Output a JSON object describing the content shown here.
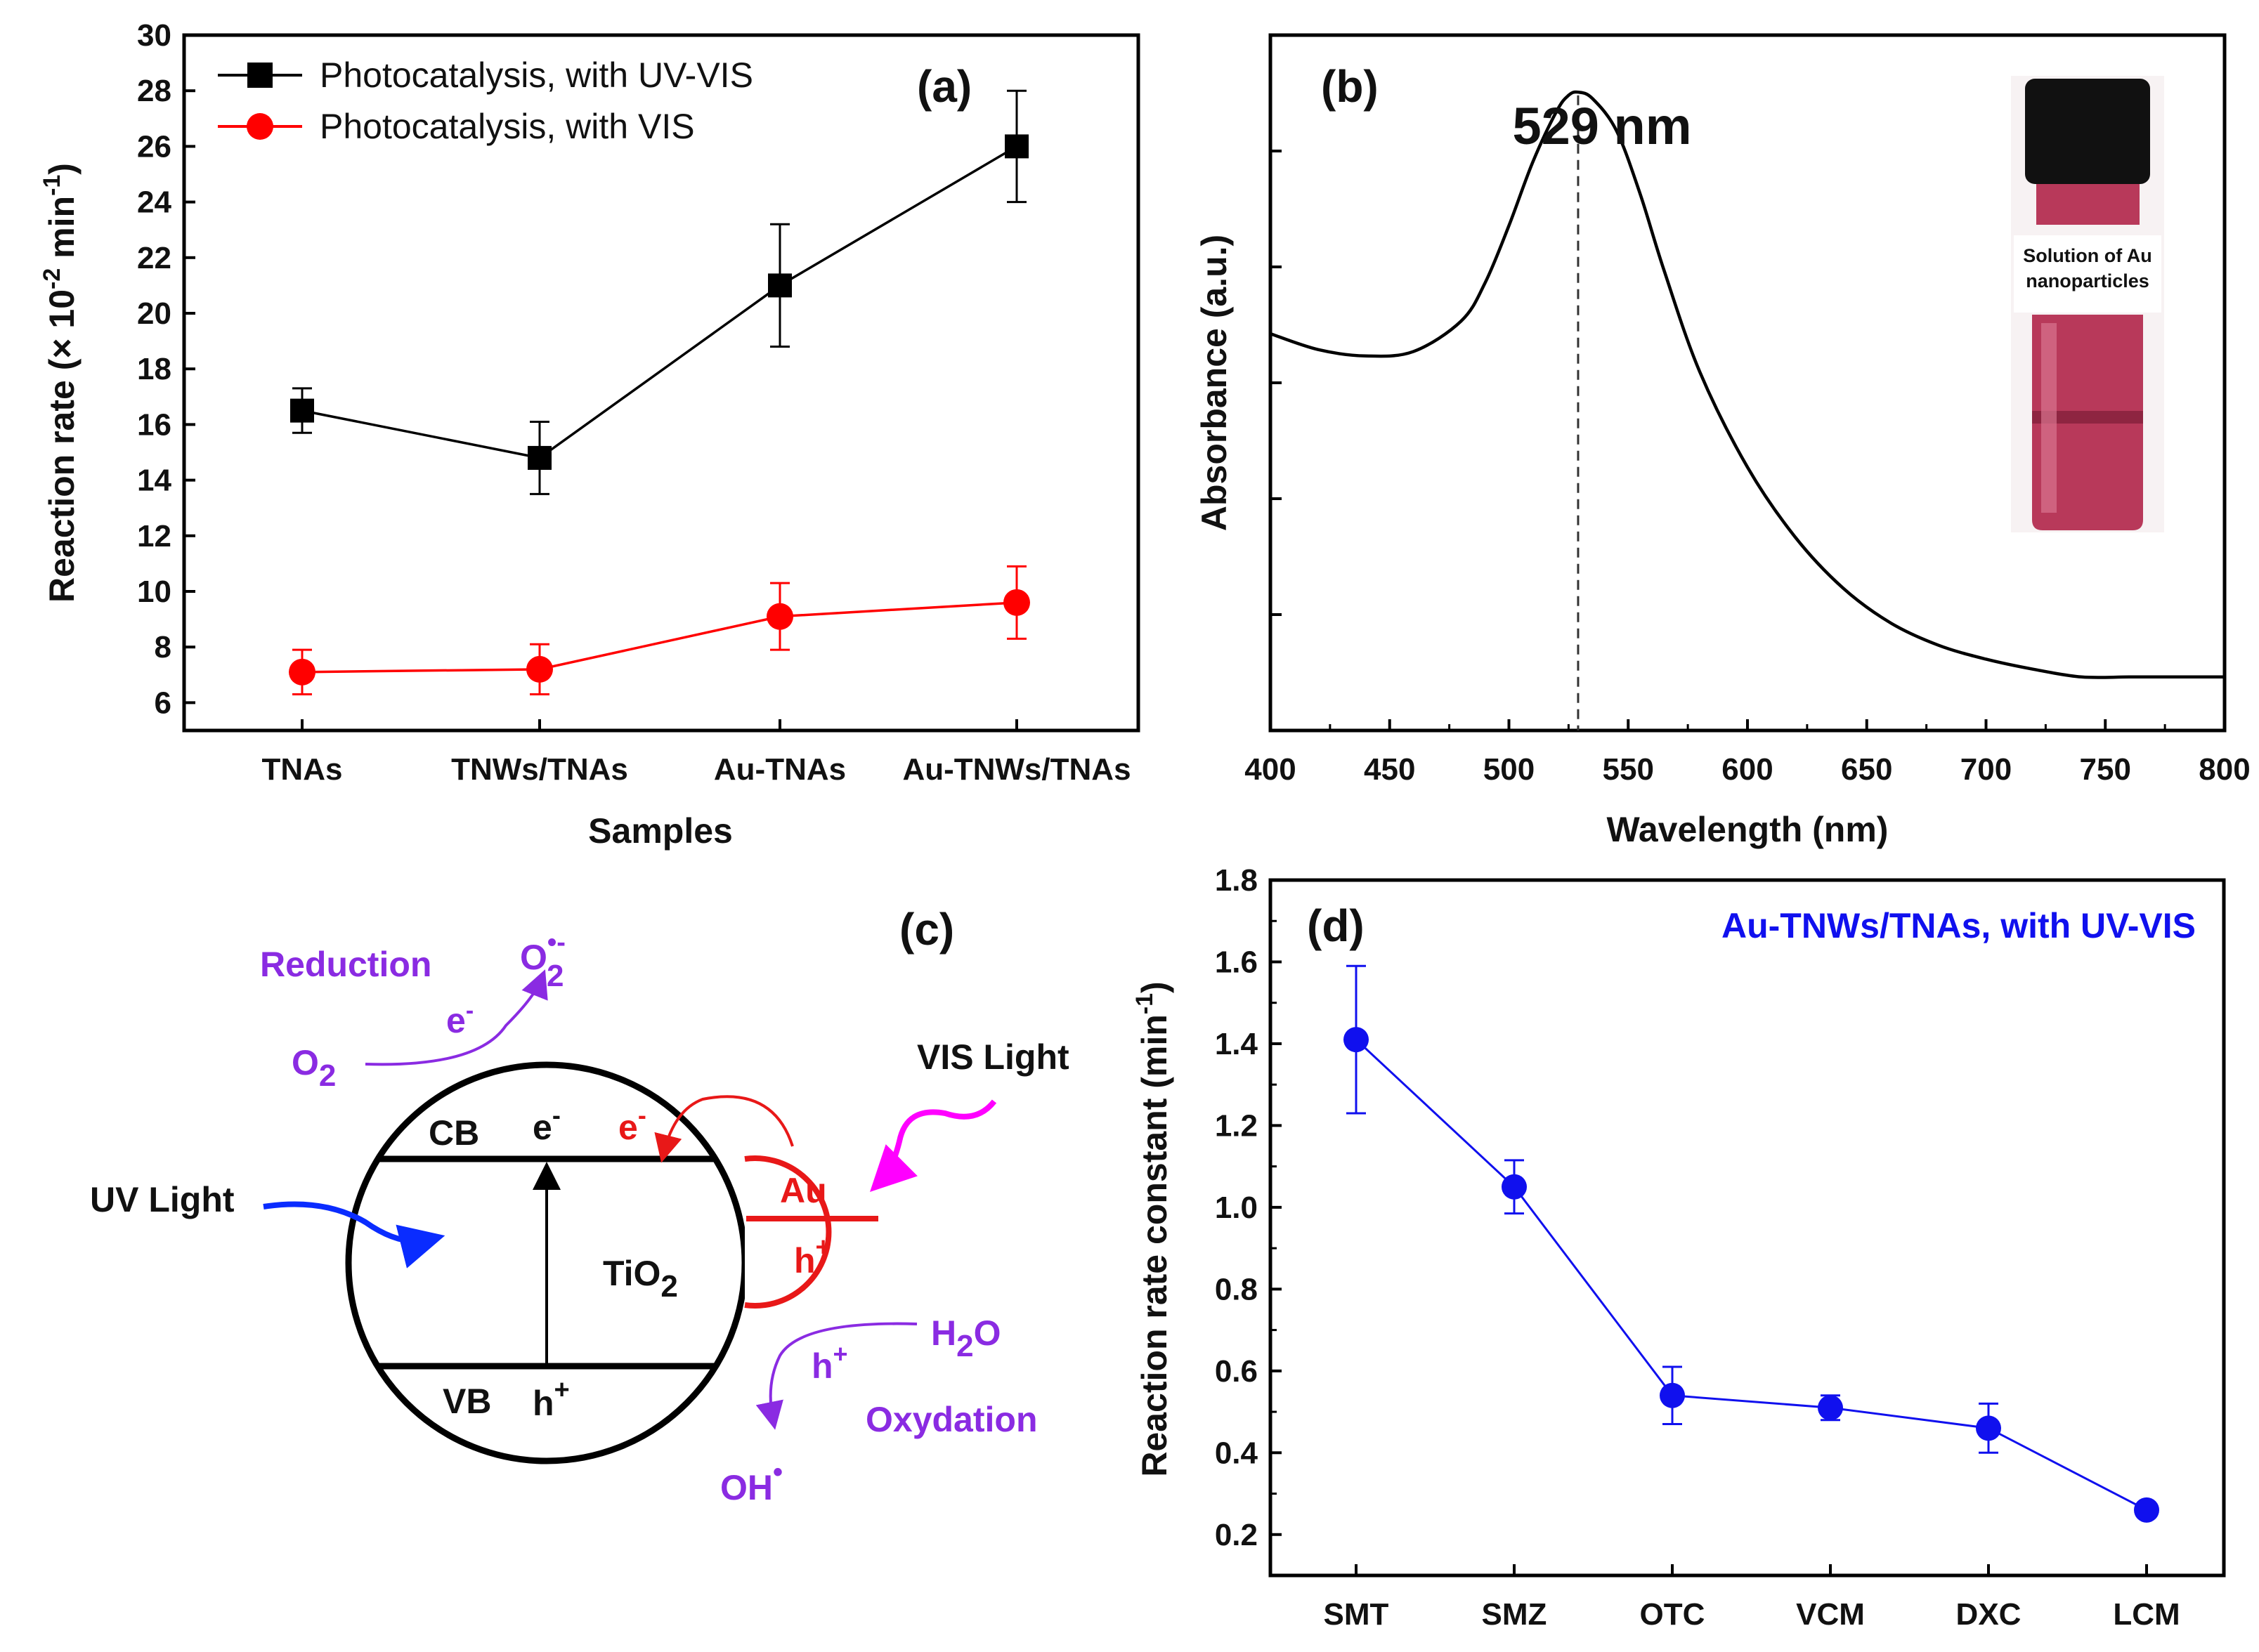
{
  "colors": {
    "black": "#000000",
    "red": "#ff0000",
    "blue": "#1010ee",
    "purple": "#8a2be2",
    "magenta": "#ff00ff",
    "uv_blue": "#0a2cff",
    "gold_red": "#e81818",
    "vial": "#b8395a"
  },
  "chart_data": [
    {
      "panel": "(a)",
      "type": "line",
      "title": "",
      "xlabel": "Samples",
      "ylabel": "Reaction rate (× 10-2 min-1)",
      "ylabel_parts": {
        "main": "Reaction rate (× 10",
        "sup1": "-2",
        "mid": " min",
        "sup2": "-1",
        "end": ")"
      },
      "categories": [
        "TNAs",
        "TNWs/TNAs",
        "Au-TNAs",
        "Au-TNWs/TNAs"
      ],
      "ylim": [
        5,
        30
      ],
      "yticks": [
        6,
        8,
        10,
        12,
        14,
        16,
        18,
        20,
        22,
        24,
        26,
        28,
        30
      ],
      "series": [
        {
          "name": "Photocatalysis, with UV-VIS",
          "color": "#000000",
          "marker": "square",
          "values": [
            16.5,
            14.8,
            21.0,
            26.0
          ],
          "errors": [
            0.8,
            1.3,
            2.2,
            2.0
          ]
        },
        {
          "name": "Photocatalysis, with VIS",
          "color": "#ff0000",
          "marker": "circle",
          "values": [
            7.1,
            7.2,
            9.1,
            9.6
          ],
          "errors": [
            0.8,
            0.9,
            1.2,
            1.3
          ]
        }
      ],
      "legend_position": "top-left"
    },
    {
      "panel": "(b)",
      "type": "line",
      "xlabel": "Wavelength (nm)",
      "ylabel": "Absorbance (a.u.)",
      "xlim": [
        400,
        800
      ],
      "xticks": [
        400,
        450,
        500,
        550,
        600,
        650,
        700,
        750,
        800
      ],
      "ylim": [
        0,
        1
      ],
      "peak_label": "529 nm",
      "peak_x": 529,
      "x": [
        400,
        420,
        440,
        460,
        480,
        490,
        500,
        510,
        520,
        525,
        529,
        535,
        545,
        555,
        565,
        580,
        600,
        620,
        640,
        660,
        680,
        700,
        720,
        740,
        760,
        780,
        800
      ],
      "values": [
        0.58,
        0.555,
        0.545,
        0.552,
        0.6,
        0.66,
        0.75,
        0.85,
        0.93,
        0.955,
        0.96,
        0.95,
        0.9,
        0.8,
        0.68,
        0.52,
        0.37,
        0.26,
        0.18,
        0.125,
        0.09,
        0.068,
        0.052,
        0.04,
        0.04,
        0.04,
        0.04
      ],
      "inset_caption": [
        "Solution of Au",
        "nanoparticles"
      ]
    },
    {
      "panel": "(d)",
      "type": "line",
      "title": "Au-TNWs/TNAs, with UV-VIS",
      "xlabel": "",
      "ylabel": "Reaction rate constant (min-1)",
      "ylabel_parts": {
        "main": "Reaction rate constant (min",
        "sup": "-1",
        "end": ")"
      },
      "categories": [
        "SMT",
        "SMZ",
        "OTC",
        "VCM",
        "DXC",
        "LCM"
      ],
      "ylim": [
        0.1,
        1.8
      ],
      "yticks": [
        0.2,
        0.4,
        0.6,
        0.8,
        1.0,
        1.2,
        1.4,
        1.6,
        1.8
      ],
      "ytick_labels": [
        "0.2",
        "0.4",
        "0.6",
        "0.8",
        "1.0",
        "1.2",
        "1.4",
        "1.6",
        "1.8"
      ],
      "series": [
        {
          "name": "Au-TNWs/TNAs, with UV-VIS",
          "color": "#1010ee",
          "marker": "circle",
          "values": [
            1.41,
            1.05,
            0.54,
            0.51,
            0.46,
            0.26
          ],
          "errors": [
            0.18,
            0.065,
            0.07,
            0.03,
            0.06,
            0.0
          ]
        }
      ]
    }
  ],
  "panel_c": {
    "label": "(c)",
    "cb": "CB",
    "vb": "VB",
    "e": "e",
    "e_sup": "-",
    "h": "h",
    "h_sup": "+",
    "tio2": "TiO",
    "tio2_sub": "2",
    "au": "Au",
    "reduction": "Reduction",
    "oxydation": "Oxydation",
    "o2": "O",
    "o2_sub": "2",
    "superoxide_sup": "•-",
    "h2o": "H",
    "h2o_sub": "2",
    "h2o_end": "O",
    "oh": "OH",
    "oh_sup": "•",
    "uv_light": "UV Light",
    "vis_light": "VIS Light"
  }
}
